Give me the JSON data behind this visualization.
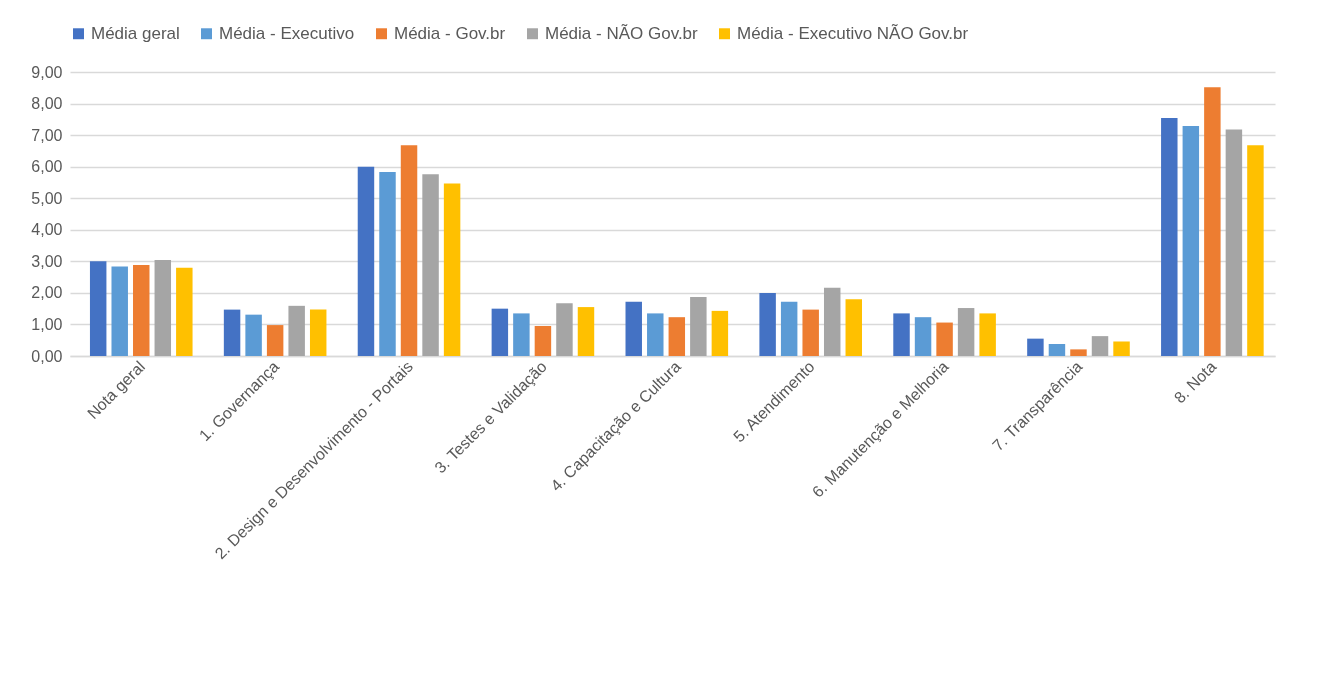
{
  "chart_data": {
    "type": "bar",
    "categories": [
      "Nota geral",
      "1. Governança",
      "2. Design e Desenvolvimento - Portais",
      "3. Testes e Validação",
      "4. Capacitação e Cultura",
      "5. Atendimento",
      "6. Manutenção e Melhoria",
      "7. Transparência",
      "8. Nota"
    ],
    "series": [
      {
        "name": "Média geral",
        "color": "#4472c4",
        "values": [
          3.0,
          1.47,
          6.0,
          1.5,
          1.72,
          2.0,
          1.35,
          0.55,
          7.54
        ]
      },
      {
        "name": "Média - Executivo",
        "color": "#5b9bd5",
        "values": [
          2.84,
          1.31,
          5.83,
          1.35,
          1.35,
          1.72,
          1.23,
          0.38,
          7.29
        ]
      },
      {
        "name": "Média - Gov.br",
        "color": "#ed7d31",
        "values": [
          2.88,
          0.98,
          6.68,
          0.95,
          1.23,
          1.47,
          1.06,
          0.21,
          8.52
        ]
      },
      {
        "name": "Média - NÃO Gov.br",
        "color": "#a5a5a5",
        "values": [
          3.04,
          1.59,
          5.76,
          1.67,
          1.87,
          2.16,
          1.52,
          0.63,
          7.18
        ]
      },
      {
        "name": "Média - Executivo NÃO Gov.br",
        "color": "#ffc000",
        "values": [
          2.8,
          1.47,
          5.47,
          1.55,
          1.43,
          1.8,
          1.35,
          0.46,
          6.68
        ]
      }
    ],
    "ylim": [
      0,
      9
    ],
    "yticks": [
      {
        "value": 0,
        "label": "0,00"
      },
      {
        "value": 1,
        "label": "1,00"
      },
      {
        "value": 2,
        "label": "2,00"
      },
      {
        "value": 3,
        "label": "3,00"
      },
      {
        "value": 4,
        "label": "4,00"
      },
      {
        "value": 5,
        "label": "5,00"
      },
      {
        "value": 6,
        "label": "6,00"
      },
      {
        "value": 7,
        "label": "7,00"
      },
      {
        "value": 8,
        "label": "8,00"
      },
      {
        "value": 9,
        "label": "9,00"
      }
    ],
    "grid": "y",
    "legend": "top"
  }
}
